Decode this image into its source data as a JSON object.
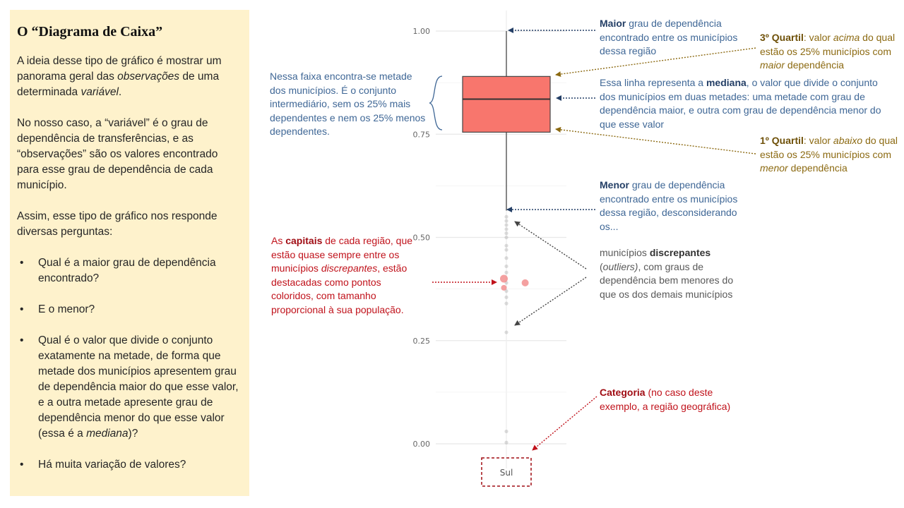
{
  "sidebar": {
    "title": "O “Diagrama de Caixa”",
    "p1": {
      "a": "A ideia desse tipo de gráfico é mostrar um panorama geral das ",
      "b": "observações",
      "c": " de uma determinada ",
      "d": "variável",
      "e": "."
    },
    "p2": "No nosso caso, a “variável” é o grau de dependência de transferências, e as “observações” são os valores encontrado para esse grau de dependência de cada município.",
    "p3": "Assim, esse tipo de gráfico nos responde diversas perguntas:",
    "bullet_glyph": "•",
    "q1": "Qual é a maior grau de dependência encontrado?",
    "q2": "E o menor?",
    "q3": {
      "a": "Qual é o valor que divide o conjunto exatamente na metade, de forma que metade dos municípios apresentem grau de dependência maior do que esse valor, e a outra metade apresente grau de dependência menor do que esse valor (essa é a ",
      "b": "mediana",
      "c": ")?"
    },
    "q4": "Há muita variação de valores?"
  },
  "annotations": {
    "maior": {
      "b": "Maior",
      "t": " grau de dependência encontrado entre os municípios dessa região"
    },
    "q3": {
      "b": "3º Quartil",
      "t1": ": valor ",
      "i1": "acima",
      "t2": " do qual estão os 25% municípios com ",
      "i2": "maior",
      "t3": " dependência"
    },
    "faixa": "Nessa faixa encontra-se metade dos municípios.  É o conjunto intermediário, sem os 25% mais dependentes e nem os 25% menos dependentes.",
    "mediana": {
      "t1": "Essa linha representa a ",
      "b": "mediana",
      "t2": ", o valor que divide o conjunto dos municípios em duas metades: uma metade com grau de dependência maior, e outra com grau de dependência menor do que esse valor"
    },
    "q1": {
      "b": "1º Quartil",
      "t1": ": valor ",
      "i1": "abaixo",
      "t2": " do qual estão os 25% municípios com ",
      "i2": "menor",
      "t3": " dependência"
    },
    "menor": {
      "b": "Menor",
      "t": " grau de dependência encontrado entre os municípios dessa região, desconsiderando os..."
    },
    "capitais": {
      "t1": "As ",
      "b": "capitais",
      "t2": " de cada região, que estão quase sempre entre os municípios ",
      "i": "discrepantes",
      "t3": ", estão destacadas como pontos coloridos, com tamanho proporcional à sua população."
    },
    "outliers": {
      "t1": "municípios ",
      "b": "discrepantes",
      "t2": " (",
      "i": "outliers)",
      "t3": ", com graus de dependência bem menores do que os dos demais municípios"
    },
    "categoria": {
      "b": "Categoria",
      "t": " (no caso deste exemplo, a região geográfica)"
    }
  },
  "colors": {
    "box": "#f8766d",
    "blue": "#3f6796",
    "gold": "#8c6a12",
    "gray": "#595959",
    "red": "#c0121b"
  },
  "chart_data": {
    "type": "boxplot",
    "category": "Sul",
    "ylim": [
      -0.06,
      1.05
    ],
    "yticks": [
      0,
      0.25,
      0.5,
      0.75,
      1
    ],
    "yticklabels": [
      "0.00",
      "0.25",
      "0.50",
      "0.75",
      "1.00"
    ],
    "max": 1.0,
    "q3": 0.89,
    "median": 0.835,
    "q1": 0.755,
    "whisker_min": 0.565,
    "outliers": [
      0.55,
      0.54,
      0.53,
      0.52,
      0.51,
      0.5,
      0.48,
      0.47,
      0.45,
      0.43,
      0.415,
      0.39,
      0.37,
      0.355,
      0.34,
      0.27,
      0.03,
      0.003
    ],
    "capitals": [
      {
        "y": 0.4,
        "jitter": -0.05,
        "size": 5.5
      },
      {
        "y": 0.39,
        "jitter": 0.38,
        "size": 5
      },
      {
        "y": 0.378,
        "jitter": -0.05,
        "size": 4
      }
    ]
  }
}
